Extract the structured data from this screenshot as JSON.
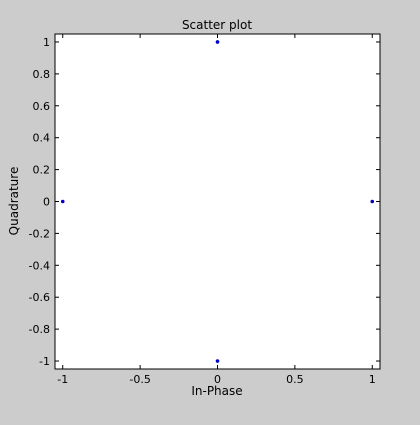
{
  "chart_data": {
    "type": "scatter",
    "title": "Scatter plot",
    "xlabel": "In-Phase",
    "ylabel": "Quadrature",
    "xlim": [
      -1.05,
      1.05
    ],
    "ylim": [
      -1.05,
      1.05
    ],
    "xticks": [
      -1,
      -0.5,
      0,
      0.5,
      1
    ],
    "xtick_labels": [
      "-1",
      "-0.5",
      "0",
      "0.5",
      "1"
    ],
    "yticks": [
      -1,
      -0.8,
      -0.6,
      -0.4,
      -0.2,
      0,
      0.2,
      0.4,
      0.6,
      0.8,
      1
    ],
    "ytick_labels": [
      "-1",
      "-0.8",
      "-0.6",
      "-0.4",
      "-0.2",
      "0",
      "0.2",
      "0.4",
      "0.6",
      "0.8",
      "1"
    ],
    "grid": false,
    "points": [
      {
        "x": 0,
        "y": 1
      },
      {
        "x": -1,
        "y": 0
      },
      {
        "x": 1,
        "y": 0
      },
      {
        "x": 0,
        "y": -1
      }
    ],
    "point_color": "#0000cc",
    "background_color": "#cccccc",
    "plot_color": "#ffffff"
  }
}
